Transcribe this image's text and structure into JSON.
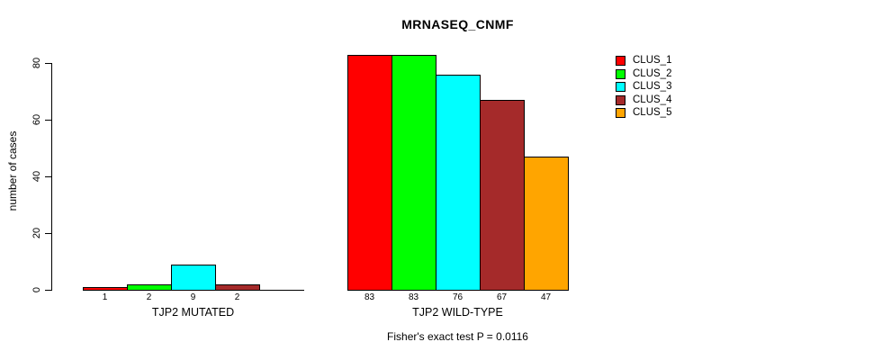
{
  "chart_data": {
    "type": "bar",
    "title": "MRNASEQ_CNMF",
    "ylabel": "number of cases",
    "xlabel": "",
    "ylim": [
      0,
      80
    ],
    "yticks": [
      0,
      20,
      40,
      60,
      80
    ],
    "grid": false,
    "legend_position": "top-right",
    "legend": [
      {
        "label": "CLUS_1",
        "color": "#FF0000"
      },
      {
        "label": "CLUS_2",
        "color": "#00FF00"
      },
      {
        "label": "CLUS_3",
        "color": "#00FFFF"
      },
      {
        "label": "CLUS_4",
        "color": "#A52A2A"
      },
      {
        "label": "CLUS_5",
        "color": "#FFA500"
      }
    ],
    "groups": [
      {
        "label": "TJP2 MUTATED",
        "slots": 5,
        "bars": [
          {
            "cluster": "CLUS_1",
            "value": 1,
            "color": "#FF0000"
          },
          {
            "cluster": "CLUS_2",
            "value": 2,
            "color": "#00FF00"
          },
          {
            "cluster": "CLUS_3",
            "value": 9,
            "color": "#00FFFF"
          },
          {
            "cluster": "CLUS_4",
            "value": 2,
            "color": "#A52A2A"
          }
        ]
      },
      {
        "label": "TJP2 WILD-TYPE",
        "slots": 5,
        "bars": [
          {
            "cluster": "CLUS_1",
            "value": 83,
            "color": "#FF0000"
          },
          {
            "cluster": "CLUS_2",
            "value": 83,
            "color": "#00FF00"
          },
          {
            "cluster": "CLUS_3",
            "value": 76,
            "color": "#00FFFF"
          },
          {
            "cluster": "CLUS_4",
            "value": 67,
            "color": "#A52A2A"
          },
          {
            "cluster": "CLUS_5",
            "value": 47,
            "color": "#FFA500"
          }
        ]
      }
    ],
    "footer": "Fisher's exact test P = 0.0116"
  }
}
